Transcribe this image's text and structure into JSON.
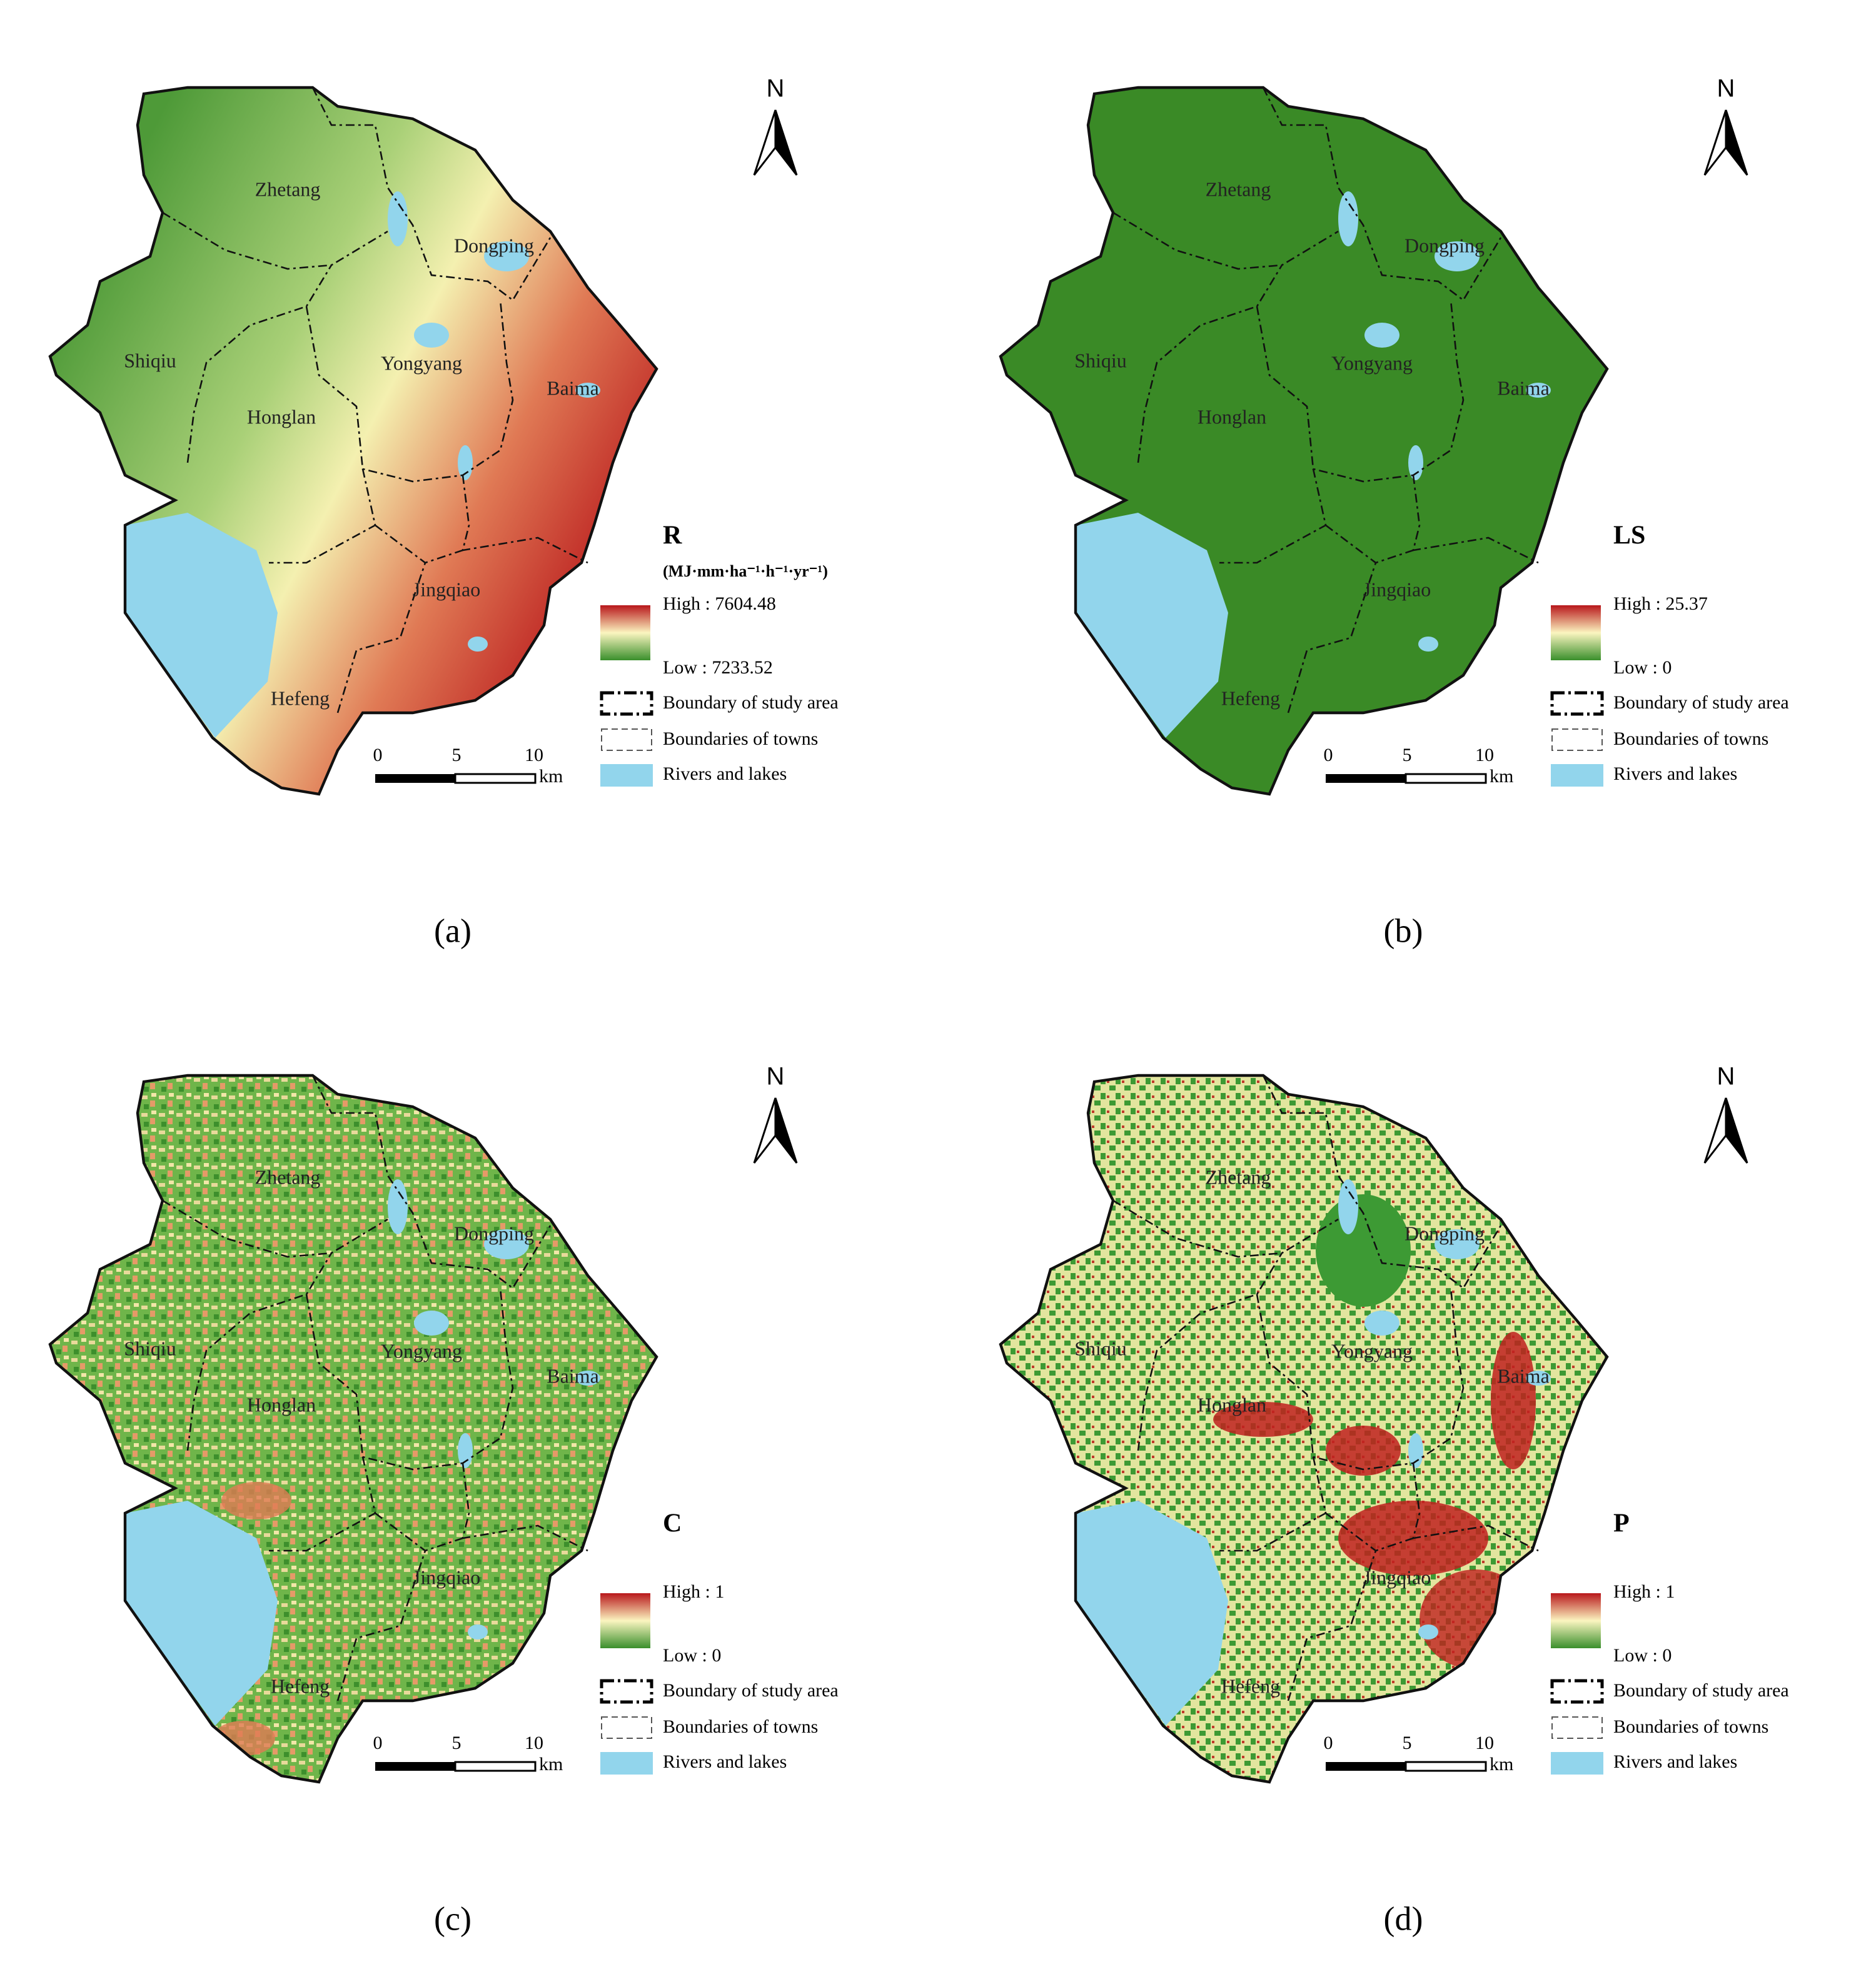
{
  "north": "N",
  "towns": [
    "Zhetang",
    "Dongping",
    "Shiqiu",
    "Yongyang",
    "Baima",
    "Honglan",
    "Jingqiao",
    "Hefeng"
  ],
  "legend": {
    "boundary": "Boundary of study area",
    "towns": "Boundaries of towns",
    "water": "Rivers and lakes"
  },
  "scale_bar": {
    "ticks": [
      "0",
      "5",
      "10"
    ],
    "unit": "km"
  },
  "panels": [
    {
      "label": "(a)",
      "title": "R",
      "unit": "(MJ·mm·ha⁻¹·h⁻¹·yr⁻¹)",
      "high": "High : 7604.48",
      "low": "Low : 7233.52"
    },
    {
      "label": "(b)",
      "title": "LS",
      "high": "High : 25.37",
      "low": "Low : 0"
    },
    {
      "label": "(c)",
      "title": "C",
      "high": "High : 1",
      "low": "Low : 0"
    },
    {
      "label": "(d)",
      "title": "P",
      "high": "High : 1",
      "low": "Low : 0"
    }
  ]
}
